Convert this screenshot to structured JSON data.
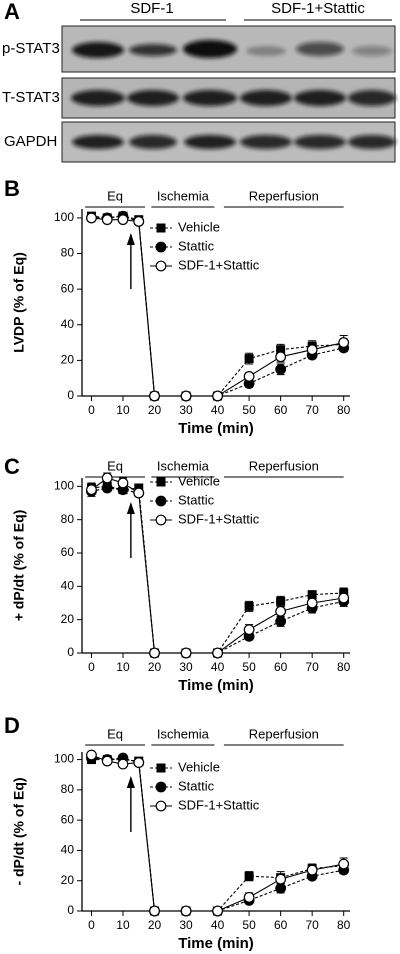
{
  "blot": {
    "panel": "A",
    "groups": [
      "SDF-1",
      "SDF-1+Stattic"
    ],
    "rows": [
      "p-STAT3",
      "T-STAT3",
      "GAPDH"
    ]
  },
  "chart_data": [
    {
      "type": "line",
      "panel": "B",
      "ylabel": "LVDP (% of Eq)",
      "xlabel": "Time (min)",
      "periods": [
        "Eq",
        "Ischemia",
        "Reperfusion"
      ],
      "x": [
        0,
        5,
        10,
        15,
        20,
        30,
        40,
        50,
        60,
        70,
        80
      ],
      "xlim": [
        -3,
        82
      ],
      "xticks": [
        0,
        10,
        20,
        30,
        40,
        50,
        60,
        70,
        80
      ],
      "ylim": [
        0,
        105
      ],
      "yticks": [
        0,
        20,
        40,
        60,
        80,
        100
      ],
      "series": [
        {
          "name": "Vehicle",
          "color": "#000000",
          "marker": "square",
          "dashed": true,
          "values": [
            101,
            100,
            101,
            99,
            0,
            0,
            0,
            21,
            26,
            28,
            29
          ],
          "errors": [
            1,
            1,
            1,
            1,
            0,
            0,
            0,
            3,
            3,
            3,
            3
          ]
        },
        {
          "name": "Stattic",
          "color": "#000000",
          "marker": "circle",
          "dashed": true,
          "values": [
            100,
            100,
            101,
            98,
            0,
            0,
            0,
            7,
            15,
            23,
            27
          ],
          "errors": [
            1,
            1,
            1,
            1,
            0,
            0,
            0,
            2,
            3,
            2,
            2
          ]
        },
        {
          "name": "SDF-1+Stattic",
          "color": "#000000",
          "marker": "open-circle",
          "dashed": false,
          "values": [
            100,
            99,
            99,
            98,
            0,
            0,
            0,
            11,
            22,
            26,
            30
          ],
          "errors": [
            1,
            1,
            1,
            1,
            0,
            0,
            0,
            2,
            3,
            3,
            4
          ]
        }
      ]
    },
    {
      "type": "line",
      "panel": "C",
      "ylabel": "+ dP/dt (% of Eq)",
      "xlabel": "Time (min)",
      "periods": [
        "Eq",
        "Ischemia",
        "Reperfusion"
      ],
      "x": [
        0,
        5,
        10,
        15,
        20,
        30,
        40,
        50,
        60,
        70,
        80
      ],
      "xlim": [
        -3,
        82
      ],
      "xticks": [
        0,
        10,
        20,
        30,
        40,
        50,
        60,
        70,
        80
      ],
      "ylim": [
        0,
        105
      ],
      "yticks": [
        0,
        20,
        40,
        60,
        80,
        100
      ],
      "series": [
        {
          "name": "Vehicle",
          "color": "#000000",
          "marker": "square",
          "dashed": true,
          "values": [
            99,
            100,
            98,
            99,
            0,
            0,
            0,
            28,
            31,
            35,
            36
          ],
          "errors": [
            3,
            2,
            2,
            2,
            0,
            0,
            0,
            3,
            3,
            2,
            3
          ]
        },
        {
          "name": "Stattic",
          "color": "#000000",
          "marker": "circle",
          "dashed": true,
          "values": [
            97,
            99,
            98,
            96,
            0,
            0,
            0,
            10,
            19,
            27,
            31
          ],
          "errors": [
            3,
            2,
            2,
            2,
            0,
            0,
            0,
            2,
            3,
            3,
            3
          ]
        },
        {
          "name": "SDF-1+Stattic",
          "color": "#000000",
          "marker": "open-circle",
          "dashed": false,
          "values": [
            98,
            105,
            102,
            96,
            0,
            0,
            0,
            14,
            25,
            30,
            33
          ],
          "errors": [
            3,
            3,
            3,
            2,
            0,
            0,
            0,
            3,
            3,
            3,
            4
          ]
        }
      ]
    },
    {
      "type": "line",
      "panel": "D",
      "ylabel": "- dP/dt (% of Eq)",
      "xlabel": "Time (min)",
      "periods": [
        "Eq",
        "Ischemia",
        "Reperfusion"
      ],
      "x": [
        0,
        5,
        10,
        15,
        20,
        30,
        40,
        50,
        60,
        70,
        80
      ],
      "xlim": [
        -3,
        82
      ],
      "xticks": [
        0,
        10,
        20,
        30,
        40,
        50,
        60,
        70,
        80
      ],
      "ylim": [
        0,
        105
      ],
      "yticks": [
        0,
        20,
        40,
        60,
        80,
        100
      ],
      "series": [
        {
          "name": "Vehicle",
          "color": "#000000",
          "marker": "square",
          "dashed": true,
          "values": [
            100,
            100,
            100,
            99,
            0,
            0,
            0,
            23,
            22,
            28,
            30
          ],
          "errors": [
            1,
            1,
            1,
            1,
            0,
            0,
            0,
            3,
            4,
            3,
            3
          ]
        },
        {
          "name": "Stattic",
          "color": "#000000",
          "marker": "circle",
          "dashed": true,
          "values": [
            101,
            100,
            101,
            98,
            0,
            0,
            0,
            7,
            15,
            23,
            27
          ],
          "errors": [
            1,
            1,
            1,
            1,
            0,
            0,
            0,
            2,
            3,
            2,
            2
          ]
        },
        {
          "name": "SDF-1+Stattic",
          "color": "#000000",
          "marker": "open-circle",
          "dashed": false,
          "values": [
            103,
            99,
            97,
            98,
            0,
            0,
            0,
            9,
            21,
            27,
            31
          ],
          "errors": [
            1,
            1,
            1,
            1,
            0,
            0,
            0,
            3,
            3,
            3,
            4
          ]
        }
      ]
    }
  ]
}
